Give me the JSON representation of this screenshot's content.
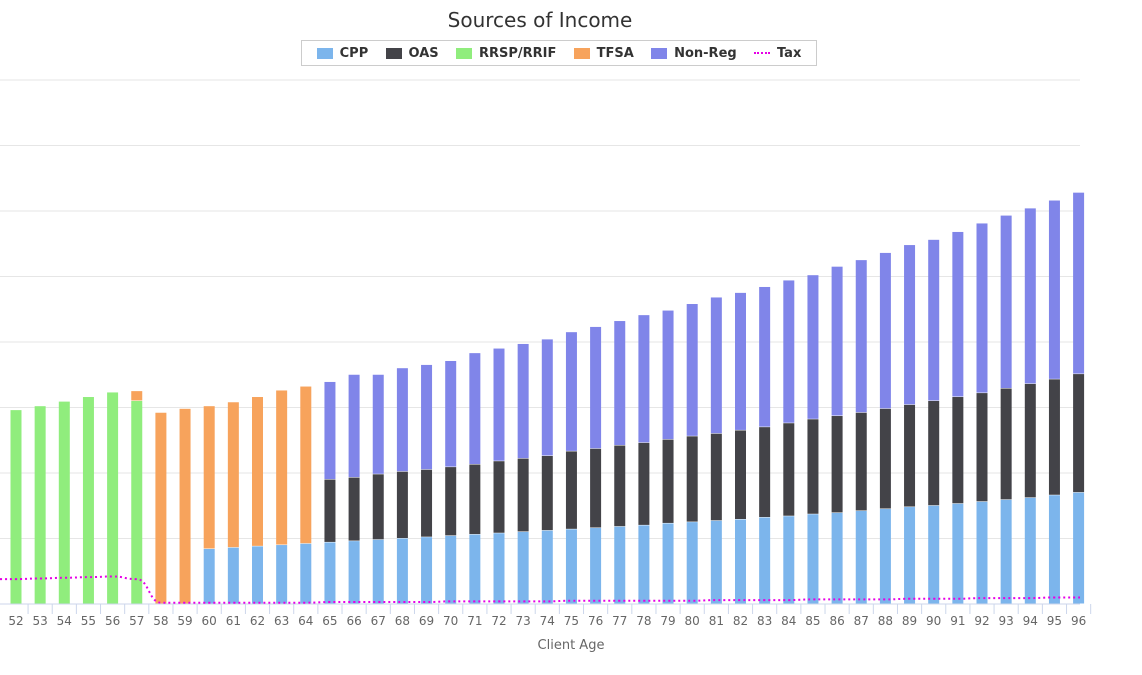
{
  "chart_data": {
    "type": "bar",
    "title": "Sources of Income",
    "xlabel": "Client Age",
    "ylabel": "",
    "stacked": true,
    "legend_position": "top-center",
    "grid": true,
    "categories": [
      "52",
      "53",
      "54",
      "55",
      "56",
      "57",
      "58",
      "59",
      "60",
      "61",
      "62",
      "63",
      "64",
      "65",
      "66",
      "67",
      "68",
      "69",
      "70",
      "71",
      "72",
      "73",
      "74",
      "75",
      "76",
      "77",
      "78",
      "79",
      "80",
      "81",
      "82",
      "83",
      "84",
      "85",
      "86",
      "87",
      "88",
      "89",
      "90",
      "91",
      "92",
      "93",
      "94",
      "95",
      "96"
    ],
    "ylim": [
      0,
      8
    ],
    "series": [
      {
        "name": "CPP",
        "color": "#7cb5ec",
        "values": [
          0,
          0,
          0,
          0,
          0,
          0,
          0,
          0,
          0.84,
          0.86,
          0.88,
          0.9,
          0.92,
          0.94,
          0.96,
          0.98,
          1.0,
          1.02,
          1.04,
          1.06,
          1.08,
          1.1,
          1.12,
          1.14,
          1.16,
          1.18,
          1.2,
          1.23,
          1.25,
          1.27,
          1.29,
          1.32,
          1.34,
          1.37,
          1.39,
          1.42,
          1.45,
          1.48,
          1.5,
          1.53,
          1.56,
          1.59,
          1.62,
          1.66,
          1.7
        ]
      },
      {
        "name": "OAS",
        "color": "#434348",
        "values": [
          0,
          0,
          0,
          0,
          0,
          0,
          0,
          0,
          0,
          0,
          0,
          0,
          0,
          0.96,
          0.97,
          1.0,
          1.02,
          1.03,
          1.05,
          1.07,
          1.1,
          1.12,
          1.14,
          1.19,
          1.21,
          1.24,
          1.26,
          1.28,
          1.31,
          1.33,
          1.36,
          1.38,
          1.42,
          1.45,
          1.48,
          1.5,
          1.53,
          1.56,
          1.6,
          1.63,
          1.66,
          1.7,
          1.74,
          1.77,
          1.81
        ]
      },
      {
        "name": "RRSP/RRIF",
        "color": "#90ed7d",
        "values": [
          2.96,
          3.02,
          3.09,
          3.16,
          3.23,
          3.1,
          0,
          0,
          0,
          0,
          0,
          0,
          0,
          0,
          0,
          0,
          0,
          0,
          0,
          0,
          0,
          0,
          0,
          0,
          0,
          0,
          0,
          0,
          0,
          0,
          0,
          0,
          0,
          0,
          0,
          0,
          0,
          0,
          0,
          0,
          0,
          0,
          0,
          0,
          0
        ]
      },
      {
        "name": "TFSA",
        "color": "#f7a35c",
        "values": [
          0,
          0,
          0,
          0,
          0,
          0.15,
          2.92,
          2.98,
          2.18,
          2.22,
          2.28,
          2.36,
          2.4,
          0,
          0,
          0,
          0,
          0,
          0,
          0,
          0,
          0,
          0,
          0,
          0,
          0,
          0,
          0,
          0,
          0,
          0,
          0,
          0,
          0,
          0,
          0,
          0,
          0,
          0,
          0,
          0,
          0,
          0,
          0,
          0
        ]
      },
      {
        "name": "Non-Reg",
        "color": "#8085e9",
        "values": [
          0,
          0,
          0,
          0,
          0,
          0,
          0,
          0,
          0,
          0,
          0,
          0,
          0,
          1.49,
          1.57,
          1.52,
          1.58,
          1.6,
          1.62,
          1.7,
          1.72,
          1.75,
          1.78,
          1.82,
          1.86,
          1.9,
          1.95,
          1.97,
          2.02,
          2.08,
          2.1,
          2.14,
          2.18,
          2.2,
          2.28,
          2.33,
          2.38,
          2.44,
          2.46,
          2.52,
          2.59,
          2.64,
          2.68,
          2.73,
          2.77
        ]
      },
      {
        "name": "Tax",
        "color": "#e600e6",
        "type": "line",
        "dash": "dotted",
        "values": [
          0.38,
          0.39,
          0.4,
          0.41,
          0.42,
          0.38,
          0.02,
          0.02,
          0.02,
          0.02,
          0.02,
          0.02,
          0.02,
          0.03,
          0.03,
          0.03,
          0.03,
          0.03,
          0.04,
          0.04,
          0.04,
          0.04,
          0.04,
          0.05,
          0.05,
          0.05,
          0.05,
          0.05,
          0.05,
          0.06,
          0.06,
          0.06,
          0.06,
          0.07,
          0.07,
          0.07,
          0.07,
          0.08,
          0.08,
          0.08,
          0.09,
          0.09,
          0.09,
          0.1,
          0.1
        ]
      }
    ]
  }
}
